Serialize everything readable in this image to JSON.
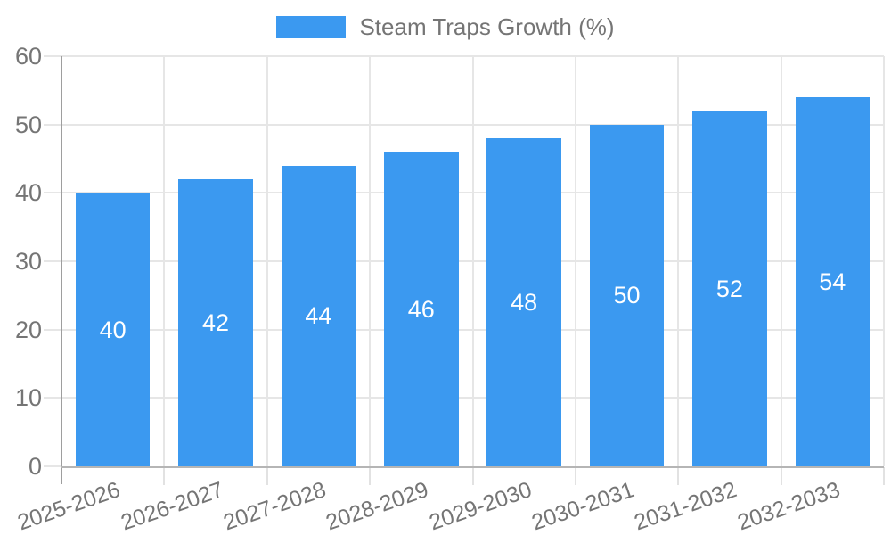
{
  "legend": {
    "label": "Steam Traps Growth (%)"
  },
  "colors": {
    "bar": "#3b99f0",
    "grid": "#e6e6e6",
    "y_axis_line": "#9e9e9e",
    "x_axis_line": "#b5b5b5",
    "axis_text": "#757575",
    "bar_label_text": "#ffffff",
    "background": "#ffffff"
  },
  "chart_data": {
    "type": "bar",
    "title": "Steam Traps Growth (%)",
    "categories": [
      "2025-2026",
      "2026-2027",
      "2027-2028",
      "2028-2029",
      "2029-2030",
      "2030-2031",
      "2031-2032",
      "2032-2033"
    ],
    "series": [
      {
        "name": "Steam Traps Growth (%)",
        "values": [
          40,
          42,
          44,
          46,
          48,
          50,
          52,
          54
        ]
      }
    ],
    "xlabel": "",
    "ylabel": "",
    "ylim": [
      0,
      60
    ],
    "yticks": [
      0,
      10,
      20,
      30,
      40,
      50,
      60
    ],
    "grid": true,
    "legend_position": "top",
    "data_labels": true,
    "data_label_placement": "center"
  }
}
